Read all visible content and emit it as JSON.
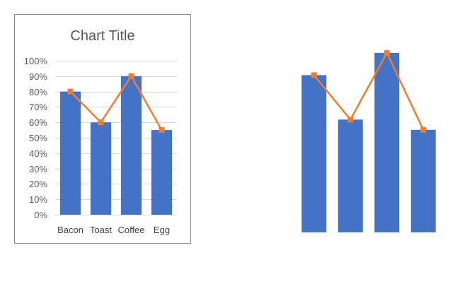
{
  "chart_data": [
    {
      "type": "bar",
      "title": "Chart Title",
      "categories": [
        "Bacon",
        "Toast",
        "Coffee",
        "Egg"
      ],
      "series": [
        {
          "type": "bar",
          "values": [
            80,
            60,
            90,
            55
          ]
        },
        {
          "type": "line",
          "values": [
            80,
            60,
            90,
            55
          ]
        }
      ],
      "y_ticks": [
        "0%",
        "10%",
        "20%",
        "30%",
        "40%",
        "50%",
        "60%",
        "70%",
        "80%",
        "90%",
        "100%"
      ],
      "ylim": [
        0,
        100
      ],
      "grid": true,
      "legend": "none"
    },
    {
      "type": "bar",
      "title": "",
      "categories": [
        "",
        "",
        "",
        ""
      ],
      "series": [
        {
          "type": "bar",
          "values": [
            92,
            66,
            105,
            60
          ]
        },
        {
          "type": "line",
          "values": [
            92,
            66,
            105,
            60
          ]
        }
      ],
      "grid": false,
      "legend": "none"
    }
  ],
  "colors": {
    "bar": "#4472C4",
    "line": "#ED7D31",
    "grid": "#D9D9D9",
    "text": "#595959",
    "border": "#888888"
  }
}
